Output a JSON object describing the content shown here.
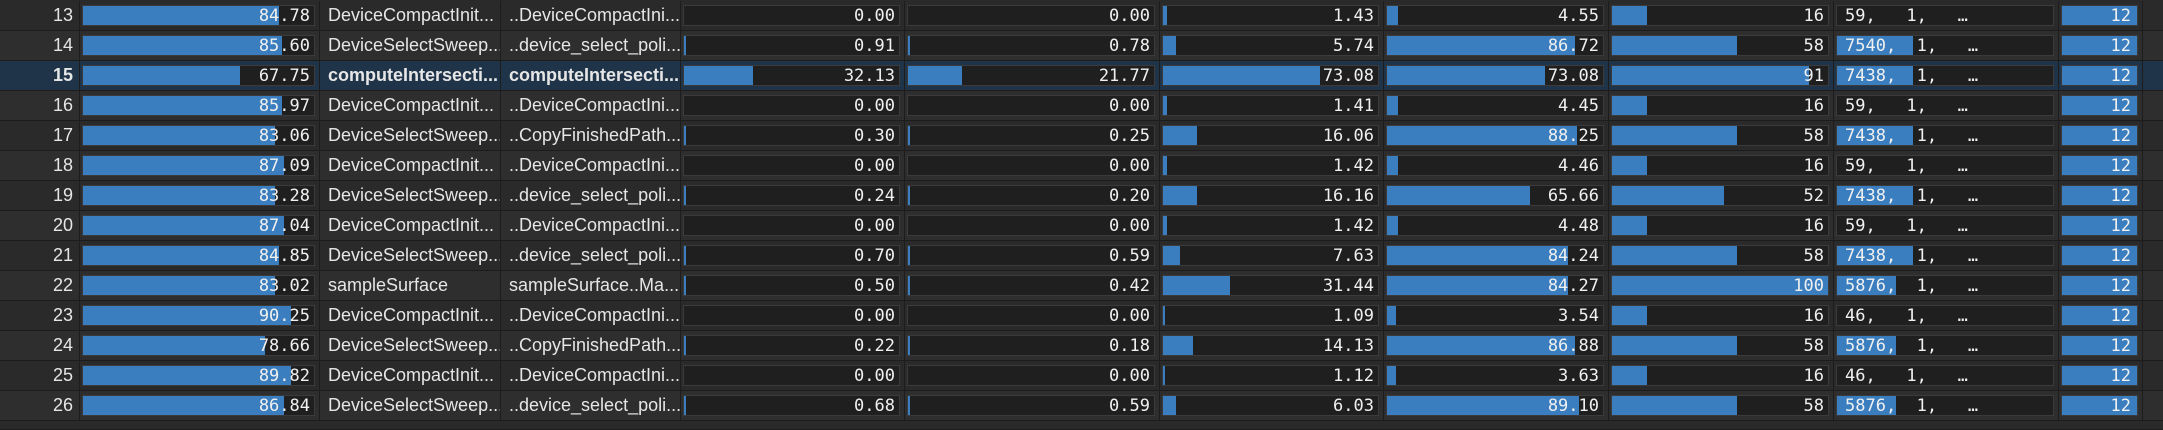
{
  "colors": {
    "bar_fill": "#3a7ebf",
    "selected_row": "#1f3349",
    "background": "#2a2a2a"
  },
  "rows": [
    {
      "idx": "13",
      "occ": "84.78",
      "occ_frac": 0.85,
      "name": "DeviceCompactInit...",
      "fn": "..DeviceCompactIni...",
      "v1": "0.00",
      "f1": 0.0,
      "v2": "0.00",
      "f2": 0.0,
      "v3": "1.43",
      "f3": 0.02,
      "v4": "4.55",
      "f4": 0.05,
      "v5": "16",
      "f5": 0.16,
      "grid": "59,   1,   …",
      "grid_frac": 0.0,
      "blk": "12",
      "blk_frac": 1.0,
      "selected": false
    },
    {
      "idx": "14",
      "occ": "85.60",
      "occ_frac": 0.86,
      "name": "DeviceSelectSweep...",
      "fn": "..device_select_poli...",
      "v1": "0.91",
      "f1": 0.01,
      "v2": "0.78",
      "f2": 0.01,
      "v3": "5.74",
      "f3": 0.06,
      "v4": "86.72",
      "f4": 0.87,
      "v5": "58",
      "f5": 0.58,
      "grid": "7540,  1,   …",
      "grid_frac": 1.0,
      "blk": "12",
      "blk_frac": 1.0,
      "selected": false
    },
    {
      "idx": "15",
      "occ": "67.75",
      "occ_frac": 0.68,
      "name": "computeIntersecti...",
      "fn": "computeIntersecti...",
      "v1": "32.13",
      "f1": 0.32,
      "v2": "21.77",
      "f2": 0.22,
      "v3": "73.08",
      "f3": 0.73,
      "v4": "73.08",
      "f4": 0.73,
      "v5": "91",
      "f5": 0.91,
      "grid": "7438,  1,   …",
      "grid_frac": 1.0,
      "blk": "12",
      "blk_frac": 1.0,
      "selected": true
    },
    {
      "idx": "16",
      "occ": "85.97",
      "occ_frac": 0.86,
      "name": "DeviceCompactInit...",
      "fn": "..DeviceCompactIni...",
      "v1": "0.00",
      "f1": 0.0,
      "v2": "0.00",
      "f2": 0.0,
      "v3": "1.41",
      "f3": 0.02,
      "v4": "4.45",
      "f4": 0.05,
      "v5": "16",
      "f5": 0.16,
      "grid": "59,   1,   …",
      "grid_frac": 0.0,
      "blk": "12",
      "blk_frac": 1.0,
      "selected": false
    },
    {
      "idx": "17",
      "occ": "83.06",
      "occ_frac": 0.83,
      "name": "DeviceSelectSweep...",
      "fn": "..CopyFinishedPath...",
      "v1": "0.30",
      "f1": 0.01,
      "v2": "0.25",
      "f2": 0.01,
      "v3": "16.06",
      "f3": 0.16,
      "v4": "88.25",
      "f4": 0.88,
      "v5": "58",
      "f5": 0.58,
      "grid": "7438,  1,   …",
      "grid_frac": 1.0,
      "blk": "12",
      "blk_frac": 1.0,
      "selected": false
    },
    {
      "idx": "18",
      "occ": "87.09",
      "occ_frac": 0.87,
      "name": "DeviceCompactInit...",
      "fn": "..DeviceCompactIni...",
      "v1": "0.00",
      "f1": 0.0,
      "v2": "0.00",
      "f2": 0.0,
      "v3": "1.42",
      "f3": 0.02,
      "v4": "4.46",
      "f4": 0.05,
      "v5": "16",
      "f5": 0.16,
      "grid": "59,   1,   …",
      "grid_frac": 0.0,
      "blk": "12",
      "blk_frac": 1.0,
      "selected": false
    },
    {
      "idx": "19",
      "occ": "83.28",
      "occ_frac": 0.83,
      "name": "DeviceSelectSweep...",
      "fn": "..device_select_poli...",
      "v1": "0.24",
      "f1": 0.01,
      "v2": "0.20",
      "f2": 0.01,
      "v3": "16.16",
      "f3": 0.16,
      "v4": "65.66",
      "f4": 0.66,
      "v5": "52",
      "f5": 0.52,
      "grid": "7438,  1,   …",
      "grid_frac": 1.0,
      "blk": "12",
      "blk_frac": 1.0,
      "selected": false
    },
    {
      "idx": "20",
      "occ": "87.04",
      "occ_frac": 0.87,
      "name": "DeviceCompactInit...",
      "fn": "..DeviceCompactIni...",
      "v1": "0.00",
      "f1": 0.0,
      "v2": "0.00",
      "f2": 0.0,
      "v3": "1.42",
      "f3": 0.02,
      "v4": "4.48",
      "f4": 0.05,
      "v5": "16",
      "f5": 0.16,
      "grid": "59,   1,   …",
      "grid_frac": 0.0,
      "blk": "12",
      "blk_frac": 1.0,
      "selected": false
    },
    {
      "idx": "21",
      "occ": "84.85",
      "occ_frac": 0.85,
      "name": "DeviceSelectSweep...",
      "fn": "..device_select_poli...",
      "v1": "0.70",
      "f1": 0.01,
      "v2": "0.59",
      "f2": 0.01,
      "v3": "7.63",
      "f3": 0.08,
      "v4": "84.24",
      "f4": 0.84,
      "v5": "58",
      "f5": 0.58,
      "grid": "7438,  1,   …",
      "grid_frac": 1.0,
      "blk": "12",
      "blk_frac": 1.0,
      "selected": false
    },
    {
      "idx": "22",
      "occ": "83.02",
      "occ_frac": 0.83,
      "name": "sampleSurface",
      "fn": "sampleSurface..Ma...",
      "v1": "0.50",
      "f1": 0.01,
      "v2": "0.42",
      "f2": 0.01,
      "v3": "31.44",
      "f3": 0.31,
      "v4": "84.27",
      "f4": 0.84,
      "v5": "100",
      "f5": 1.0,
      "grid": "5876,  1,   …",
      "grid_frac": 0.78,
      "blk": "12",
      "blk_frac": 1.0,
      "selected": false
    },
    {
      "idx": "23",
      "occ": "90.25",
      "occ_frac": 0.9,
      "name": "DeviceCompactInit...",
      "fn": "..DeviceCompactIni...",
      "v1": "0.00",
      "f1": 0.0,
      "v2": "0.00",
      "f2": 0.0,
      "v3": "1.09",
      "f3": 0.01,
      "v4": "3.54",
      "f4": 0.04,
      "v5": "16",
      "f5": 0.16,
      "grid": "46,   1,   …",
      "grid_frac": 0.0,
      "blk": "12",
      "blk_frac": 1.0,
      "selected": false
    },
    {
      "idx": "24",
      "occ": "78.66",
      "occ_frac": 0.79,
      "name": "DeviceSelectSweep...",
      "fn": "..CopyFinishedPath...",
      "v1": "0.22",
      "f1": 0.01,
      "v2": "0.18",
      "f2": 0.01,
      "v3": "14.13",
      "f3": 0.14,
      "v4": "86.88",
      "f4": 0.87,
      "v5": "58",
      "f5": 0.58,
      "grid": "5876,  1,   …",
      "grid_frac": 0.78,
      "blk": "12",
      "blk_frac": 1.0,
      "selected": false
    },
    {
      "idx": "25",
      "occ": "89.82",
      "occ_frac": 0.9,
      "name": "DeviceCompactInit...",
      "fn": "..DeviceCompactIni...",
      "v1": "0.00",
      "f1": 0.0,
      "v2": "0.00",
      "f2": 0.0,
      "v3": "1.12",
      "f3": 0.01,
      "v4": "3.63",
      "f4": 0.04,
      "v5": "16",
      "f5": 0.16,
      "grid": "46,   1,   …",
      "grid_frac": 0.0,
      "blk": "12",
      "blk_frac": 1.0,
      "selected": false
    },
    {
      "idx": "26",
      "occ": "86.84",
      "occ_frac": 0.87,
      "name": "DeviceSelectSweep...",
      "fn": "..device_select_poli...",
      "v1": "0.68",
      "f1": 0.01,
      "v2": "0.59",
      "f2": 0.01,
      "v3": "6.03",
      "f3": 0.06,
      "v4": "89.10",
      "f4": 0.89,
      "v5": "58",
      "f5": 0.58,
      "grid": "5876,  1,   …",
      "grid_frac": 0.78,
      "blk": "12",
      "blk_frac": 1.0,
      "selected": false
    }
  ]
}
